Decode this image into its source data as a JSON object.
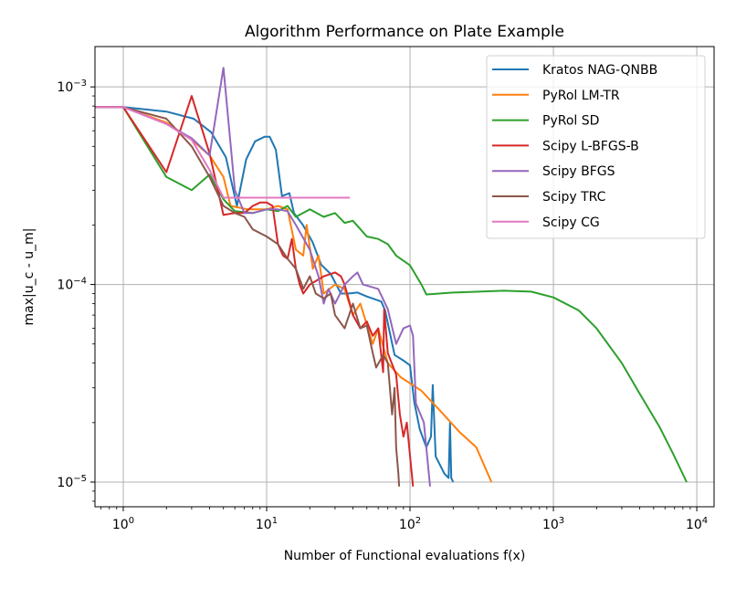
{
  "chart_data": {
    "type": "line",
    "title": "Algorithm Performance on Plate Example",
    "xlabel": "Number of Functional evaluations f(x)",
    "ylabel": "max|u_c - u_m|",
    "xscale": "log",
    "yscale": "log",
    "xlim": [
      0.635,
      13200
    ],
    "ylim": [
      7.5e-06,
      0.0016
    ],
    "grid": true,
    "legend_placement": "top-right",
    "x_ticks": [
      {
        "value": 1,
        "base": "10",
        "exp": "0"
      },
      {
        "value": 10,
        "base": "10",
        "exp": "1"
      },
      {
        "value": 100,
        "base": "10",
        "exp": "2"
      },
      {
        "value": 1000,
        "base": "10",
        "exp": "3"
      },
      {
        "value": 10000,
        "base": "10",
        "exp": "4"
      }
    ],
    "y_ticks": [
      {
        "value": 0.001,
        "base": "10",
        "exp": "−3"
      },
      {
        "value": 0.0001,
        "base": "10",
        "exp": "−4"
      },
      {
        "value": 1e-05,
        "base": "10",
        "exp": "−5"
      }
    ],
    "series": [
      {
        "name": "Kratos NAG-QNBB",
        "color": "#1f77b4",
        "points": [
          [
            0.6,
            0.00079
          ],
          [
            1,
            0.00079
          ],
          [
            2,
            0.00075
          ],
          [
            3.1,
            0.00069
          ],
          [
            4.1,
            0.00059
          ],
          [
            5.2,
            0.00044
          ],
          [
            6.2,
            0.00025
          ],
          [
            7.2,
            0.00043
          ],
          [
            8.3,
            0.00053
          ],
          [
            9.7,
            0.00056
          ],
          [
            10.5,
            0.00056
          ],
          [
            11.6,
            0.00048
          ],
          [
            12.8,
            0.00028
          ],
          [
            14.4,
            0.00029
          ],
          [
            15.5,
            0.00023
          ],
          [
            17.9,
            0.0002
          ],
          [
            20.9,
            0.000164
          ],
          [
            24,
            0.000126
          ],
          [
            28,
            0.000113
          ],
          [
            33,
            9e-05
          ],
          [
            37,
            9e-05
          ],
          [
            43,
            9.1e-05
          ],
          [
            50,
            8.7e-05
          ],
          [
            63,
            8.2e-05
          ],
          [
            67,
            7.4e-05
          ],
          [
            78,
            4.4e-05
          ],
          [
            91,
            4.1e-05
          ],
          [
            100,
            3.9e-05
          ],
          [
            107,
            2.55e-05
          ],
          [
            117,
            1.85e-05
          ],
          [
            130,
            1.5e-05
          ],
          [
            140,
            1.7e-05
          ],
          [
            144,
            3.1e-05
          ],
          [
            151,
            1.35e-05
          ],
          [
            174,
            1.1e-05
          ],
          [
            186,
            1.05e-05
          ],
          [
            190,
            2e-05
          ],
          [
            194,
            1.05e-05
          ],
          [
            200,
            1e-05
          ]
        ]
      },
      {
        "name": "PyRol LM-TR",
        "color": "#ff7f0e",
        "points": [
          [
            0.6,
            0.00079
          ],
          [
            1,
            0.00079
          ],
          [
            2,
            0.00066
          ],
          [
            3,
            0.00054
          ],
          [
            4,
            0.00045
          ],
          [
            5,
            0.00035
          ],
          [
            5.6,
            0.00025
          ],
          [
            7.4,
            0.00024
          ],
          [
            10,
            0.00024
          ],
          [
            12,
            0.00025
          ],
          [
            14,
            0.00024
          ],
          [
            16,
            0.00015
          ],
          [
            18,
            0.00014
          ],
          [
            19,
            0.0002
          ],
          [
            21,
            0.00012
          ],
          [
            23,
            0.00014
          ],
          [
            25,
            9e-05
          ],
          [
            30,
            0.0001
          ],
          [
            35,
            9.5e-05
          ],
          [
            40,
            7e-05
          ],
          [
            45,
            8e-05
          ],
          [
            55,
            5e-05
          ],
          [
            60,
            6e-05
          ],
          [
            70,
            4e-05
          ],
          [
            80,
            3.6e-05
          ],
          [
            86,
            3.4e-05
          ],
          [
            120,
            2.9e-05
          ],
          [
            162,
            2.3e-05
          ],
          [
            220,
            1.8e-05
          ],
          [
            290,
            1.5e-05
          ],
          [
            370,
            1e-05
          ]
        ]
      },
      {
        "name": "PyRol SD",
        "color": "#2ca02c",
        "points": [
          [
            0.6,
            0.00079
          ],
          [
            1,
            0.00079
          ],
          [
            2,
            0.00035
          ],
          [
            3,
            0.0003
          ],
          [
            4,
            0.00036
          ],
          [
            5,
            0.00027
          ],
          [
            6,
            0.000235
          ],
          [
            8,
            0.00023
          ],
          [
            10,
            0.00024
          ],
          [
            12,
            0.000235
          ],
          [
            14,
            0.00025
          ],
          [
            16,
            0.00022
          ],
          [
            20,
            0.00024
          ],
          [
            25,
            0.00022
          ],
          [
            30,
            0.00023
          ],
          [
            35,
            0.000205
          ],
          [
            40,
            0.00021
          ],
          [
            50,
            0.000175
          ],
          [
            60,
            0.00017
          ],
          [
            70,
            0.00016
          ],
          [
            80,
            0.00014
          ],
          [
            100,
            0.000125
          ],
          [
            120,
            0.0001
          ],
          [
            130,
            8.9e-05
          ],
          [
            200,
            9.1e-05
          ],
          [
            450,
            9.3e-05
          ],
          [
            700,
            9.2e-05
          ],
          [
            1000,
            8.6e-05
          ],
          [
            1500,
            7.4e-05
          ],
          [
            2000,
            6e-05
          ],
          [
            3000,
            4e-05
          ],
          [
            4000,
            2.8e-05
          ],
          [
            5500,
            1.9e-05
          ],
          [
            6800,
            1.4e-05
          ],
          [
            8500,
            1e-05
          ]
        ]
      },
      {
        "name": "Scipy L-BFGS-B",
        "color": "#d62728",
        "points": [
          [
            0.6,
            0.00079
          ],
          [
            1,
            0.00079
          ],
          [
            2,
            0.00037
          ],
          [
            3,
            0.0009
          ],
          [
            4,
            0.00046
          ],
          [
            5,
            0.000225
          ],
          [
            6,
            0.00023
          ],
          [
            7,
            0.00023
          ],
          [
            8,
            0.00025
          ],
          [
            9,
            0.00026
          ],
          [
            10,
            0.00026
          ],
          [
            11,
            0.00025
          ],
          [
            12,
            0.00016
          ],
          [
            13,
            0.00014
          ],
          [
            14,
            0.000135
          ],
          [
            15,
            0.00017
          ],
          [
            16,
            0.00012
          ],
          [
            17,
            0.0001
          ],
          [
            18,
            9e-05
          ],
          [
            20,
            0.0001
          ],
          [
            25,
            0.00011
          ],
          [
            30,
            0.000115
          ],
          [
            33,
            0.00011
          ],
          [
            35,
            0.0001
          ],
          [
            40,
            7e-05
          ],
          [
            45,
            6e-05
          ],
          [
            50,
            6.5e-05
          ],
          [
            55,
            5.5e-05
          ],
          [
            60,
            6e-05
          ],
          [
            65,
            3.6e-05
          ],
          [
            66,
            7.5e-05
          ],
          [
            70,
            4.5e-05
          ],
          [
            80,
            3.5e-05
          ],
          [
            85,
            2.2e-05
          ],
          [
            90,
            1.7e-05
          ],
          [
            95,
            2e-05
          ],
          [
            105,
            9.5e-06
          ]
        ]
      },
      {
        "name": "Scipy BFGS",
        "color": "#9467bd",
        "points": [
          [
            0.6,
            0.00079
          ],
          [
            1,
            0.00079
          ],
          [
            2,
            0.00065
          ],
          [
            3,
            0.00055
          ],
          [
            4,
            0.00045
          ],
          [
            5,
            0.00125
          ],
          [
            6,
            0.0003
          ],
          [
            7,
            0.00023
          ],
          [
            8,
            0.00023
          ],
          [
            10,
            0.00024
          ],
          [
            12,
            0.00024
          ],
          [
            14,
            0.000235
          ],
          [
            16,
            0.0002
          ],
          [
            20,
            0.00015
          ],
          [
            23,
            0.00011
          ],
          [
            25,
            8e-05
          ],
          [
            27,
            9.5e-05
          ],
          [
            30,
            8e-05
          ],
          [
            35,
            0.0001
          ],
          [
            40,
            0.00011
          ],
          [
            43,
            0.000115
          ],
          [
            47,
            0.0001
          ],
          [
            60,
            9.5e-05
          ],
          [
            70,
            7.5e-05
          ],
          [
            80,
            5e-05
          ],
          [
            90,
            6e-05
          ],
          [
            100,
            6.2e-05
          ],
          [
            105,
            5.5e-05
          ],
          [
            110,
            2.5e-05
          ],
          [
            125,
            2e-05
          ],
          [
            138,
            9.5e-06
          ]
        ]
      },
      {
        "name": "Scipy TRC",
        "color": "#8c564b",
        "points": [
          [
            0.6,
            0.00079
          ],
          [
            1,
            0.00079
          ],
          [
            2,
            0.00069
          ],
          [
            3,
            0.0005
          ],
          [
            4,
            0.00035
          ],
          [
            5,
            0.00025
          ],
          [
            6,
            0.00023
          ],
          [
            7,
            0.00022
          ],
          [
            8,
            0.00019
          ],
          [
            10,
            0.000175
          ],
          [
            12,
            0.00016
          ],
          [
            14,
            0.000135
          ],
          [
            16,
            0.00012
          ],
          [
            18,
            9.5e-05
          ],
          [
            20,
            0.00011
          ],
          [
            22,
            9e-05
          ],
          [
            25,
            8.5e-05
          ],
          [
            28,
            9e-05
          ],
          [
            30,
            7e-05
          ],
          [
            35,
            6e-05
          ],
          [
            40,
            8e-05
          ],
          [
            45,
            6e-05
          ],
          [
            50,
            6.2e-05
          ],
          [
            55,
            4.5e-05
          ],
          [
            58,
            3.8e-05
          ],
          [
            65,
            4.4e-05
          ],
          [
            70,
            4e-05
          ],
          [
            75,
            2.2e-05
          ],
          [
            78,
            3e-05
          ],
          [
            80,
            1.5e-05
          ],
          [
            83,
            1.1e-05
          ],
          [
            84,
            9.5e-06
          ]
        ]
      },
      {
        "name": "Scipy CG",
        "color": "#e377c2",
        "points": [
          [
            0.6,
            0.00079
          ],
          [
            1,
            0.00079
          ],
          [
            2,
            0.00065
          ],
          [
            3,
            0.00054
          ],
          [
            4,
            0.00038
          ],
          [
            5,
            0.000275
          ],
          [
            10,
            0.000275
          ],
          [
            20,
            0.000275
          ],
          [
            38,
            0.000275
          ]
        ]
      }
    ]
  }
}
